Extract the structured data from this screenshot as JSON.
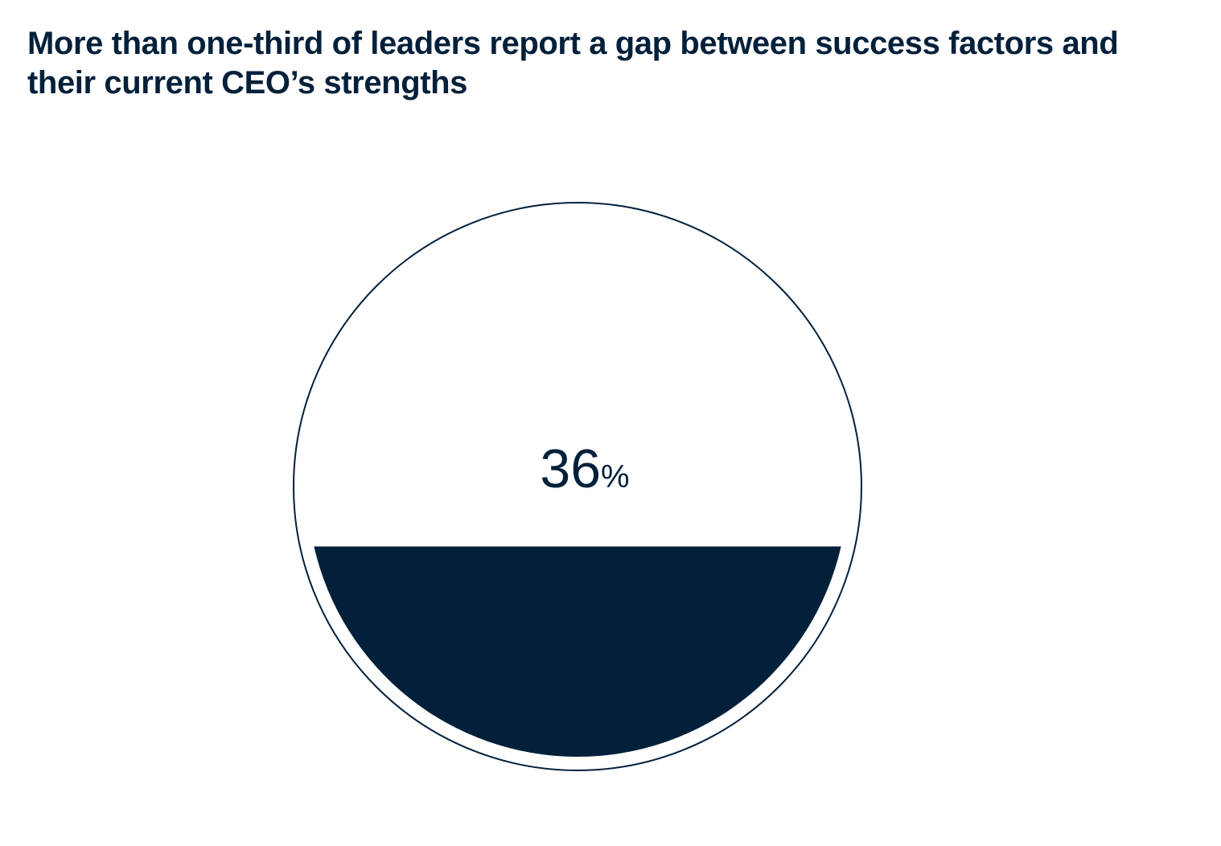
{
  "title": "More than one-third of leaders report a gap between success factors and their current CEO’s strengths",
  "colors": {
    "primary": "#03203a",
    "background": "#ffffff"
  },
  "chart_data": {
    "type": "fill-gauge",
    "title": "More than one-third of leaders report a gap between success factors and their current CEO’s strengths",
    "value": 36,
    "max": 100,
    "value_label": {
      "number": "36",
      "unit": "%"
    }
  }
}
